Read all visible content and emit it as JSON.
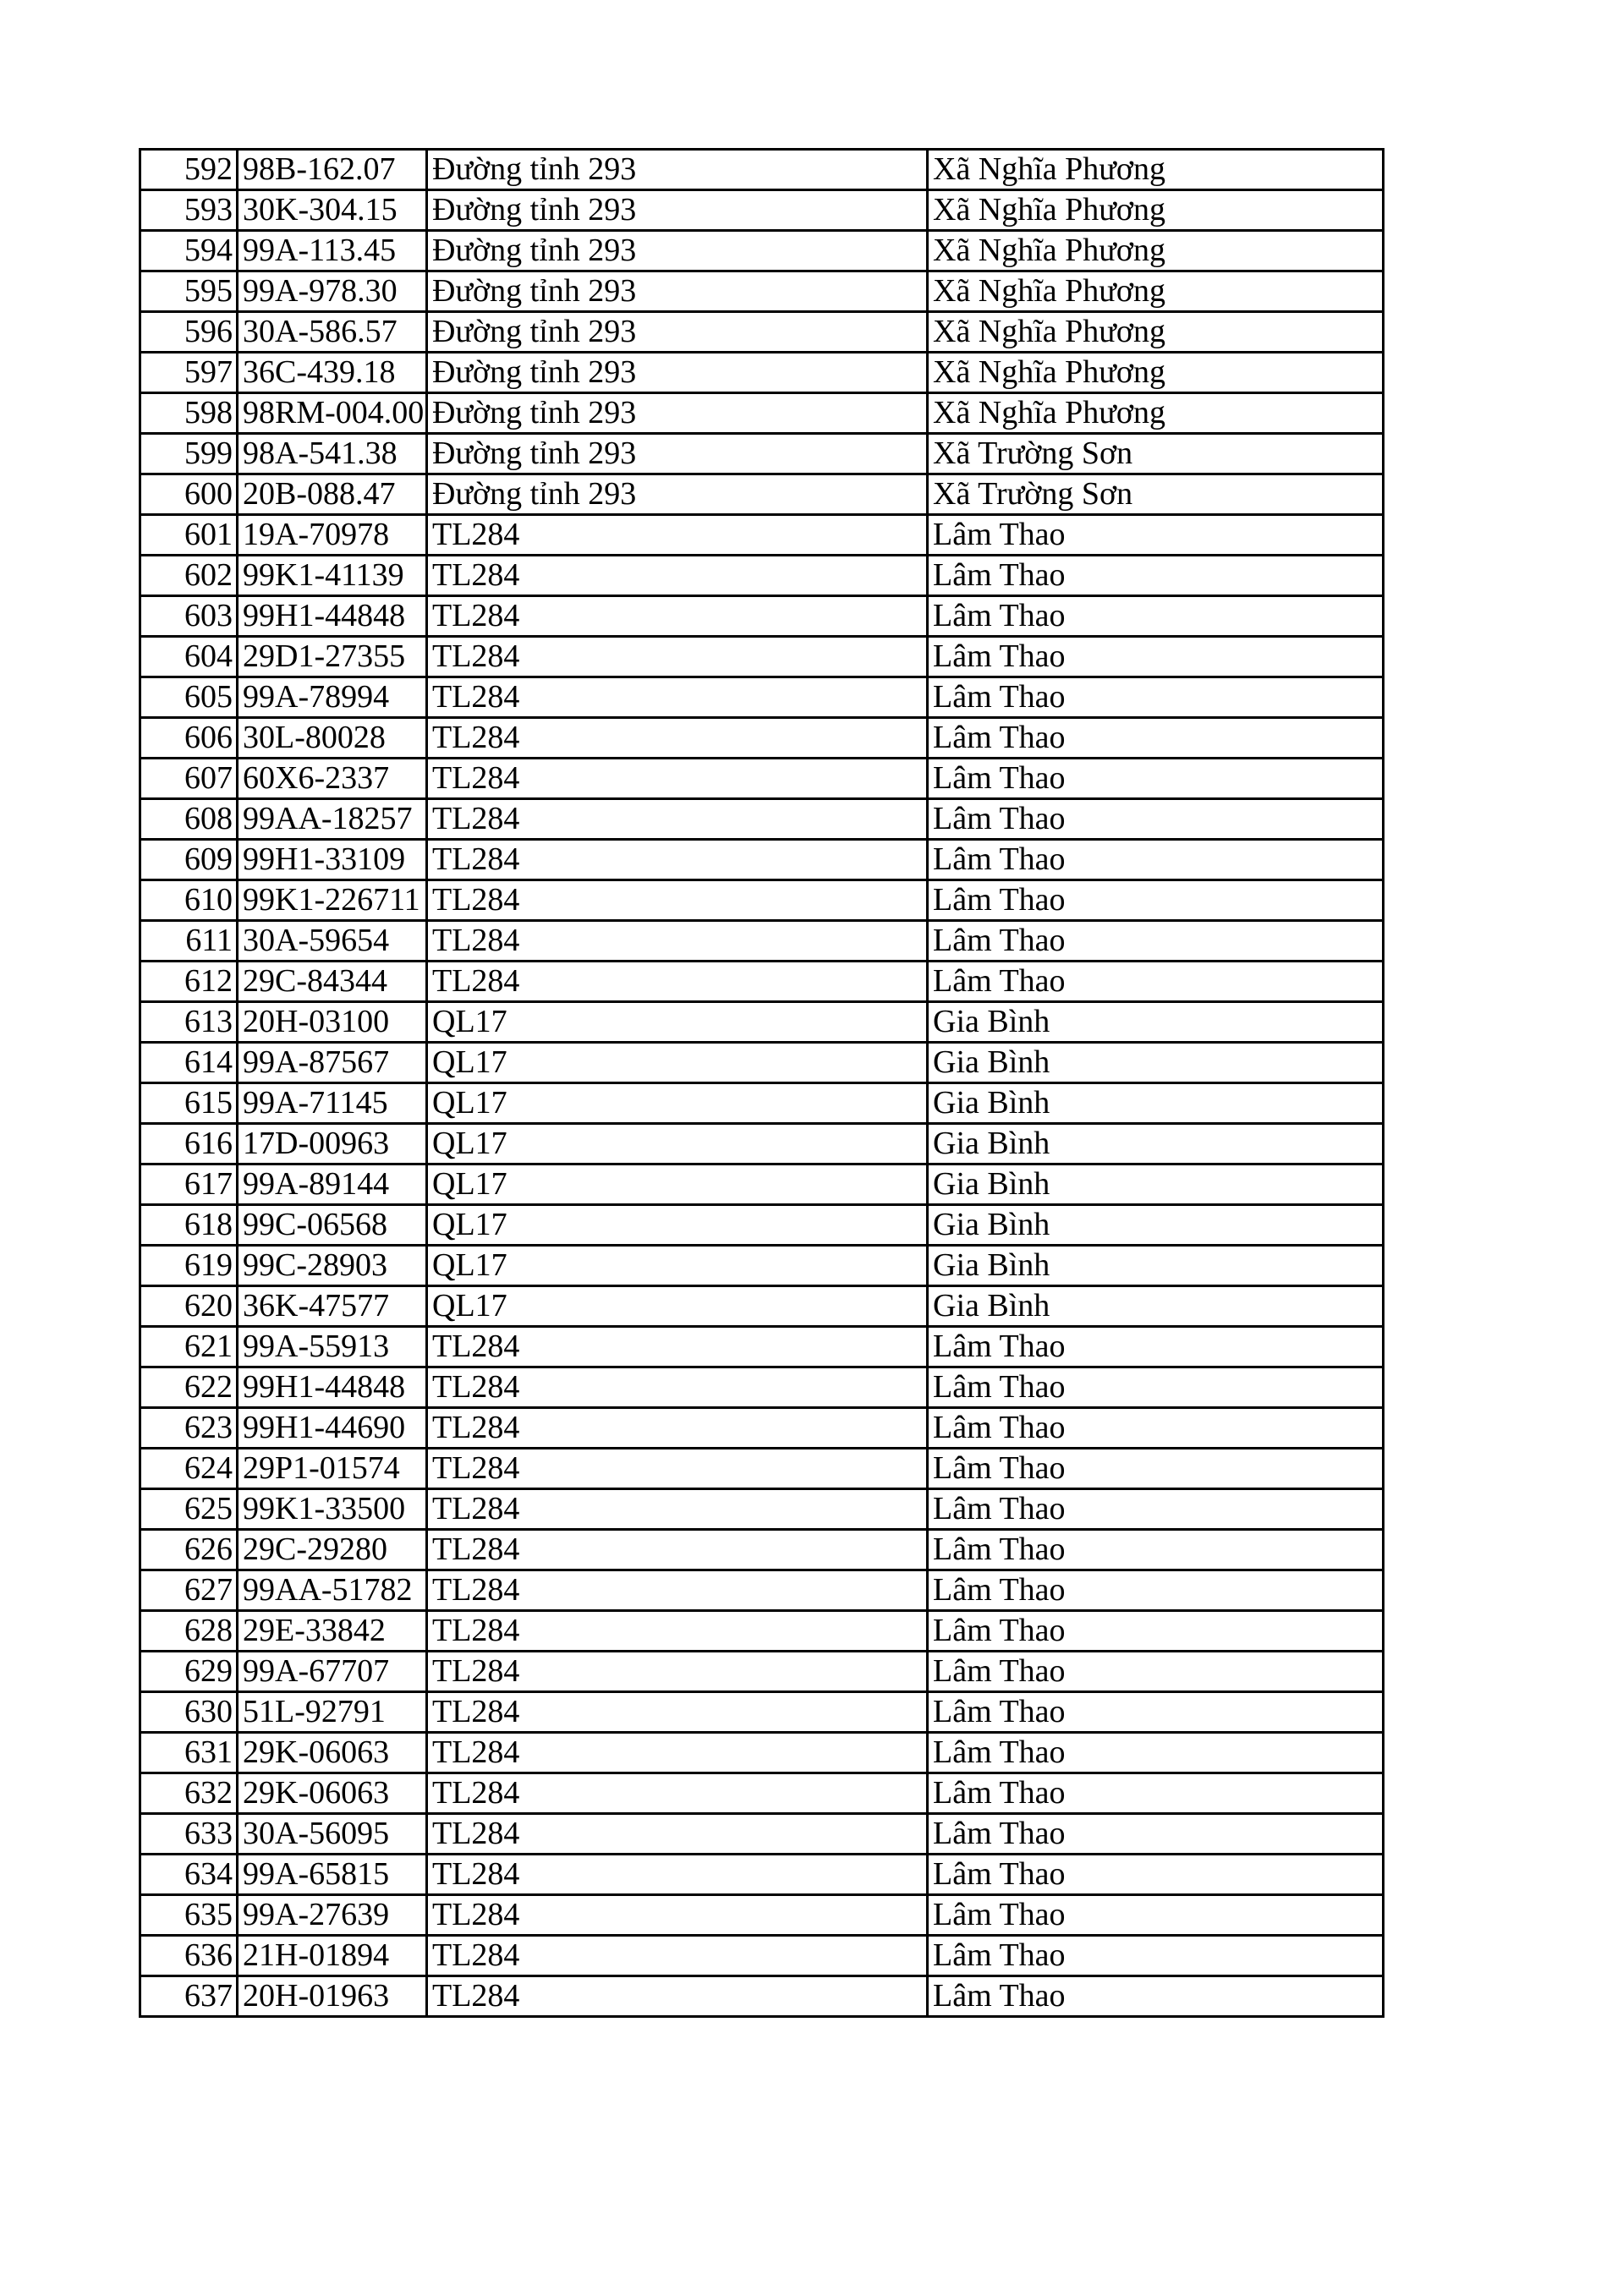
{
  "rows": [
    [
      "592",
      "98B-162.07",
      "Đường tỉnh 293",
      "Xã Nghĩa Phương"
    ],
    [
      "593",
      "30K-304.15",
      "Đường tỉnh 293",
      "Xã Nghĩa Phương"
    ],
    [
      "594",
      "99A-113.45",
      "Đường tỉnh 293",
      "Xã Nghĩa Phương"
    ],
    [
      "595",
      "99A-978.30",
      "Đường tỉnh 293",
      "Xã Nghĩa Phương"
    ],
    [
      "596",
      "30A-586.57",
      "Đường tỉnh 293",
      "Xã Nghĩa Phương"
    ],
    [
      "597",
      "36C-439.18",
      "Đường tỉnh 293",
      "Xã Nghĩa Phương"
    ],
    [
      "598",
      "98RM-004.00",
      "Đường tỉnh 293",
      "Xã Nghĩa Phương"
    ],
    [
      "599",
      "98A-541.38",
      "Đường tỉnh 293",
      "Xã Trường Sơn"
    ],
    [
      "600",
      "20B-088.47",
      "Đường tỉnh 293",
      "Xã Trường Sơn"
    ],
    [
      "601",
      "19A-70978",
      "TL284",
      "Lâm Thao"
    ],
    [
      "602",
      "99K1-41139",
      "TL284",
      "Lâm Thao"
    ],
    [
      "603",
      "99H1-44848",
      "TL284",
      "Lâm Thao"
    ],
    [
      "604",
      "29D1-27355",
      "TL284",
      "Lâm Thao"
    ],
    [
      "605",
      "99A-78994",
      "TL284",
      "Lâm Thao"
    ],
    [
      "606",
      "30L-80028",
      "TL284",
      "Lâm Thao"
    ],
    [
      "607",
      "60X6-2337",
      "TL284",
      "Lâm Thao"
    ],
    [
      "608",
      "99AA-18257",
      "TL284",
      "Lâm Thao"
    ],
    [
      "609",
      "99H1-33109",
      "TL284",
      "Lâm Thao"
    ],
    [
      "610",
      "99K1-226711",
      "TL284",
      "Lâm Thao"
    ],
    [
      "611",
      "30A-59654",
      "TL284",
      "Lâm Thao"
    ],
    [
      "612",
      "29C-84344",
      "TL284",
      "Lâm Thao"
    ],
    [
      "613",
      "20H-03100",
      "QL17",
      "Gia Bình"
    ],
    [
      "614",
      "99A-87567",
      "QL17",
      "Gia Bình"
    ],
    [
      "615",
      "99A-71145",
      "QL17",
      "Gia Bình"
    ],
    [
      "616",
      "17D-00963",
      "QL17",
      "Gia Bình"
    ],
    [
      "617",
      "99A-89144",
      "QL17",
      "Gia Bình"
    ],
    [
      "618",
      "99C-06568",
      "QL17",
      "Gia Bình"
    ],
    [
      "619",
      "99C-28903",
      "QL17",
      "Gia Bình"
    ],
    [
      "620",
      "36K-47577",
      "QL17",
      "Gia Bình"
    ],
    [
      "621",
      "99A-55913",
      "TL284",
      "Lâm Thao"
    ],
    [
      "622",
      "99H1-44848",
      "TL284",
      "Lâm Thao"
    ],
    [
      "623",
      "99H1-44690",
      "TL284",
      "Lâm Thao"
    ],
    [
      "624",
      "29P1-01574",
      "TL284",
      "Lâm Thao"
    ],
    [
      "625",
      "99K1-33500",
      "TL284",
      "Lâm Thao"
    ],
    [
      "626",
      "29C-29280",
      "TL284",
      "Lâm Thao"
    ],
    [
      "627",
      "99AA-51782",
      "TL284",
      "Lâm Thao"
    ],
    [
      "628",
      "29E-33842",
      "TL284",
      "Lâm Thao"
    ],
    [
      "629",
      "99A-67707",
      "TL284",
      "Lâm Thao"
    ],
    [
      "630",
      "51L-92791",
      "TL284",
      "Lâm Thao"
    ],
    [
      "631",
      "29K-06063",
      "TL284",
      "Lâm Thao"
    ],
    [
      "632",
      "29K-06063",
      "TL284",
      "Lâm Thao"
    ],
    [
      "633",
      "30A-56095",
      "TL284",
      "Lâm Thao"
    ],
    [
      "634",
      "99A-65815",
      "TL284",
      "Lâm Thao"
    ],
    [
      "635",
      "99A-27639",
      "TL284",
      "Lâm Thao"
    ],
    [
      "636",
      "21H-01894",
      "TL284",
      "Lâm Thao"
    ],
    [
      "637",
      "20H-01963",
      "TL284",
      "Lâm Thao"
    ]
  ]
}
